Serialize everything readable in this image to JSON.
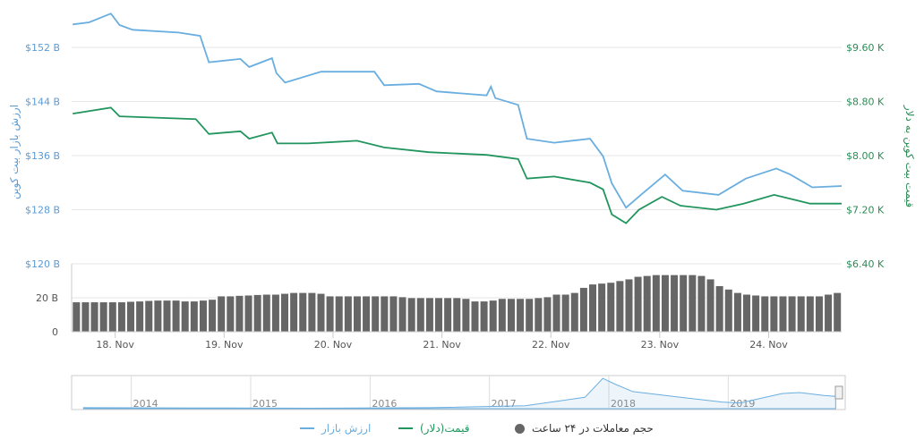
{
  "chart_data": {
    "type": "line",
    "left_axis": {
      "title": "ارزش بازار بیت کوین",
      "ticks": [
        "$152 B",
        "$144 B",
        "$136 B",
        "$128 B",
        "$120 B"
      ],
      "values": [
        152,
        144,
        136,
        128,
        120
      ],
      "color": "#5b9bd5"
    },
    "right_axis": {
      "title": "قیمت بیت کوین به دلار",
      "ticks": [
        "$9.60 K",
        "$8.80 K",
        "$8.00 K",
        "$7.20 K",
        "$6.40 K"
      ],
      "values": [
        9.6,
        8.8,
        8.0,
        7.2,
        6.4
      ],
      "color": "#2e8b57"
    },
    "volume_axis": {
      "ticks": [
        "20 B",
        "0"
      ],
      "values": [
        20,
        0
      ]
    },
    "x_ticks": [
      {
        "label": "18. Nov",
        "day": 18
      },
      {
        "label": "19. Nov",
        "day": 19
      },
      {
        "label": "20. Nov",
        "day": 20
      },
      {
        "label": "21. Nov",
        "day": 21
      },
      {
        "label": "22. Nov",
        "day": 22
      },
      {
        "label": "23. Nov",
        "day": 23
      },
      {
        "label": "24. Nov",
        "day": 24
      }
    ],
    "x_range": [
      17.6,
      24.67
    ],
    "series": [
      {
        "name": "ارزش بازار",
        "color": "#6aaee0",
        "axis": "left",
        "points": [
          [
            17.61,
            155.4
          ],
          [
            17.76,
            155.7
          ],
          [
            17.96,
            157
          ],
          [
            18.04,
            155.3
          ],
          [
            18.16,
            154.6
          ],
          [
            18.58,
            154.2
          ],
          [
            18.78,
            153.7
          ],
          [
            18.86,
            149.8
          ],
          [
            19.15,
            150.3
          ],
          [
            19.23,
            149.1
          ],
          [
            19.44,
            150.4
          ],
          [
            19.48,
            148.2
          ],
          [
            19.56,
            146.8
          ],
          [
            19.89,
            148.4
          ],
          [
            20.38,
            148.4
          ],
          [
            20.47,
            146.4
          ],
          [
            20.79,
            146.6
          ],
          [
            20.95,
            145.5
          ],
          [
            21.41,
            144.9
          ],
          [
            21.45,
            146.2
          ],
          [
            21.49,
            144.5
          ],
          [
            21.7,
            143.5
          ],
          [
            21.78,
            138.5
          ],
          [
            22.03,
            137.9
          ],
          [
            22.36,
            138.5
          ],
          [
            22.48,
            135.9
          ],
          [
            22.56,
            131.9
          ],
          [
            22.69,
            128.3
          ],
          [
            22.85,
            130.5
          ],
          [
            23.05,
            133.2
          ],
          [
            23.21,
            130.8
          ],
          [
            23.54,
            130.2
          ],
          [
            23.79,
            132.6
          ],
          [
            24.07,
            134.1
          ],
          [
            24.2,
            133.2
          ],
          [
            24.4,
            131.3
          ],
          [
            24.67,
            131.5
          ]
        ]
      },
      {
        "name": "قیمت(دلار)",
        "color": "#22955e",
        "axis": "right",
        "points": [
          [
            17.61,
            8.62
          ],
          [
            17.96,
            8.71
          ],
          [
            18.04,
            8.58
          ],
          [
            18.74,
            8.54
          ],
          [
            18.86,
            8.32
          ],
          [
            19.15,
            8.36
          ],
          [
            19.23,
            8.25
          ],
          [
            19.44,
            8.34
          ],
          [
            19.49,
            8.18
          ],
          [
            19.77,
            8.18
          ],
          [
            20.22,
            8.22
          ],
          [
            20.47,
            8.12
          ],
          [
            20.88,
            8.05
          ],
          [
            21.41,
            8.01
          ],
          [
            21.7,
            7.95
          ],
          [
            21.78,
            7.66
          ],
          [
            22.03,
            7.69
          ],
          [
            22.36,
            7.6
          ],
          [
            22.48,
            7.5
          ],
          [
            22.56,
            7.13
          ],
          [
            22.69,
            7.0
          ],
          [
            22.81,
            7.2
          ],
          [
            23.02,
            7.39
          ],
          [
            23.19,
            7.26
          ],
          [
            23.52,
            7.2
          ],
          [
            23.77,
            7.29
          ],
          [
            24.05,
            7.42
          ],
          [
            24.38,
            7.29
          ],
          [
            24.67,
            7.29
          ]
        ]
      }
    ],
    "volume": {
      "name": "حجم معاملات در ۲۴ ساعت",
      "color": "#666666",
      "values": [
        17.5,
        17.5,
        17.5,
        17.5,
        17.5,
        17.5,
        17.8,
        18,
        18.3,
        18.5,
        18.5,
        18.5,
        18,
        18,
        18.5,
        19,
        21,
        21,
        21.3,
        21.5,
        21.8,
        22,
        22,
        22.5,
        23,
        23,
        23,
        22.5,
        21,
        21,
        21,
        21,
        21,
        21,
        21,
        21,
        20.5,
        20,
        20,
        20,
        20,
        20,
        20,
        19.5,
        18,
        18,
        18.5,
        19.5,
        19.5,
        19.5,
        19.5,
        20,
        20.5,
        22,
        22,
        23,
        26,
        28,
        28.5,
        29,
        30,
        31,
        32.5,
        33,
        33.5,
        33.5,
        33.5,
        33.5,
        33.5,
        33,
        31,
        27,
        25,
        23,
        22,
        21.5,
        21,
        21,
        21,
        21,
        21,
        21,
        21,
        22,
        23
      ]
    },
    "navigator": {
      "years": [
        "2014",
        "2015",
        "2016",
        "2017",
        "2018",
        "2019"
      ],
      "points": [
        [
          2013.6,
          10
        ],
        [
          2014.5,
          8
        ],
        [
          2015.5,
          5
        ],
        [
          2016.5,
          10
        ],
        [
          2017.3,
          30
        ],
        [
          2017.8,
          120
        ],
        [
          2017.95,
          320
        ],
        [
          2018.05,
          260
        ],
        [
          2018.2,
          180
        ],
        [
          2018.6,
          120
        ],
        [
          2018.95,
          70
        ],
        [
          2019.1,
          60
        ],
        [
          2019.45,
          160
        ],
        [
          2019.6,
          170
        ],
        [
          2019.8,
          140
        ],
        [
          2019.9,
          130
        ]
      ]
    }
  },
  "legend": [
    {
      "label": "ارزش بازار",
      "color": "#6aaee0",
      "type": "line"
    },
    {
      "label": "قیمت(دلار)",
      "color": "#22955e",
      "type": "line"
    },
    {
      "label": "حجم معاملات در ۲۴ ساعت",
      "color": "#666666",
      "type": "dot"
    }
  ]
}
